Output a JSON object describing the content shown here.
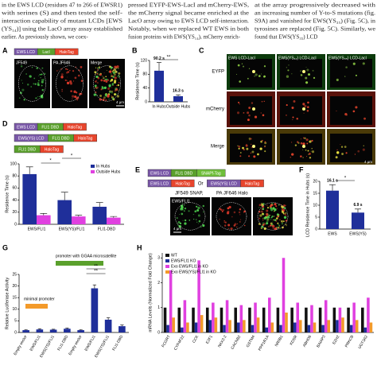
{
  "text_columns": [
    [
      "in the EWS LCD (residues 47 to 266 of EWSR1)",
      "with serines (S) and then tested the self-",
      "interaction capability of mutant LCDs [EWS",
      "(YS₁₄)] using the LacO array assay established",
      "earlier. As previously shown, we coex-"
    ],
    [
      "pressed EYFP-EWS-LacI and mCherry-EWS,",
      "the mCherry signal became enriched at the",
      "LacO array owing to EWS LCD self-interaction.",
      "Notably, when we replaced WT EWS in both",
      "fusion proteins with EWS(YS₁₄), mCherry enrich-"
    ],
    [
      "at the array progressively decreased with",
      "an increasing number of Y-to-S mutations (fig.",
      "S9A) and vanished for EWS(YS₃₅) (Fig. 5C), in",
      "tyrosines are replaced (Fig. 5C). Similarly, we",
      "found that EWS(YS₃₅) LCD"
    ]
  ],
  "panel_letters": [
    "A",
    "B",
    "C",
    "D",
    "E",
    "F",
    "G",
    "H"
  ],
  "panel_A": {
    "construct": [
      {
        "label": "EWS LCD",
        "color": "#7a58a8"
      },
      {
        "label": "LacI",
        "color": "#5aa02c"
      },
      {
        "label": "HaloTag",
        "color": "#e8452c"
      }
    ],
    "channels": [
      "JF549",
      "PA JF646",
      "Merge"
    ],
    "scale_bar": "4 μm"
  },
  "panel_C": {
    "columns": [
      "EWS LCD-LacI",
      "EWS(YS₁₄) LCD-LacI",
      "EWS(YS₃₅) LCD-LacI"
    ],
    "rows": [
      "EYFP",
      "mCherry",
      "Merge"
    ],
    "scale_bar": "4 μm"
  },
  "panel_D": {
    "constructs": [
      [
        {
          "label": "EWS LCD",
          "color": "#7a58a8"
        },
        {
          "label": "FLI1 DBD",
          "color": "#5aa02c"
        },
        {
          "label": "HaloTag",
          "color": "#e8452c"
        }
      ],
      [
        {
          "label": "EWS(YS) LCD",
          "color": "#7a58a8"
        },
        {
          "label": "FLI1 DBD",
          "color": "#5aa02c"
        },
        {
          "label": "HaloTag",
          "color": "#e8452c"
        }
      ],
      [
        {
          "label": "FLI1 DBD",
          "color": "#5aa02c"
        },
        {
          "label": "HaloTag",
          "color": "#e8452c"
        }
      ]
    ]
  },
  "panel_E": {
    "construct_1": [
      {
        "label": "EWS LCD",
        "color": "#7a58a8"
      },
      {
        "label": "FLI1 DBD",
        "color": "#5aa02c"
      },
      {
        "label": "SNAPf-Tag",
        "color": "#6fbf3a"
      }
    ],
    "construct_2a": [
      {
        "label": "EWS LCD",
        "color": "#7a58a8"
      },
      {
        "label": "HaloTag",
        "color": "#e8452c"
      }
    ],
    "or": "Or",
    "construct_2b": [
      {
        "label": "EWS(YS) LCD",
        "color": "#7a58a8"
      },
      {
        "label": "HaloTag",
        "color": "#e8452c"
      }
    ],
    "channels": [
      "JF549 SNAP,",
      "PA JF646 Halo"
    ],
    "cell_label": "EWS/FLI1",
    "scale_bar": "4 μm"
  },
  "panel_G": {
    "labels": [
      "minimal promoter",
      "promoter with GGAA microsatellite"
    ]
  },
  "chart_data": [
    {
      "type": "bar",
      "ylabel": "Residence Time (s)",
      "categories": [
        "In Hubs",
        "Outside Hubs"
      ],
      "values": [
        90.2,
        16.3
      ],
      "errors": [
        24,
        4
      ],
      "value_labels": [
        "90.2 s",
        "16.3 s"
      ],
      "color": "#1f2f9a",
      "ylim": [
        0,
        120
      ],
      "yticks": [
        0,
        40,
        80,
        120
      ],
      "annotations": [
        "**"
      ]
    },
    {
      "type": "bar",
      "ylabel": "Residence Time (s)",
      "categories": [
        "EWS/FLI1",
        "EWS(YS)/FLI1",
        "FLI1-DBD"
      ],
      "series": [
        {
          "name": "In Hubs",
          "color": "#1f2f9a",
          "values": [
            83,
            40,
            29
          ],
          "errors": [
            12,
            13,
            7
          ]
        },
        {
          "name": "Outside Hubs",
          "color": "#e040e0",
          "values": [
            15,
            13,
            11
          ],
          "errors": [
            3,
            2,
            2
          ]
        }
      ],
      "ylim": [
        0,
        100
      ],
      "yticks": [
        0,
        20,
        40,
        60,
        80,
        100
      ],
      "legend": "upper right",
      "annotations": [
        "*",
        "*"
      ]
    },
    {
      "type": "bar",
      "ylabel": "LCD Residence Time in Hubs (s)",
      "categories": [
        "EWS",
        "EWS(YS)"
      ],
      "values": [
        16.1,
        6.9
      ],
      "errors": [
        2.5,
        1.5
      ],
      "value_labels": [
        "16.1 s",
        "6.9 s"
      ],
      "color": "#1f2f9a",
      "ylim": [
        0,
        20
      ],
      "yticks": [
        0,
        5,
        10,
        15,
        20
      ],
      "annotations": [
        "*"
      ]
    },
    {
      "type": "bar",
      "ylabel": "Relative Luciferase Activity",
      "categories": [
        "Empty vector",
        "EWS/FLI1",
        "EWS(YS)/FLI1",
        "FLI1-DBD",
        "Empty vector",
        "EWS/FLI1",
        "EWS(YS)/FLI1",
        "FLI1-DBD"
      ],
      "values": [
        1.0,
        1.3,
        1.2,
        1.6,
        1.0,
        19,
        5.5,
        2.7
      ],
      "errors": [
        0.2,
        0.3,
        0.2,
        0.3,
        0.2,
        1.5,
        0.8,
        0.5
      ],
      "color": "#1f2f9a",
      "ylim": [
        0,
        25
      ],
      "yticks": [
        0,
        5,
        10,
        15,
        20,
        25
      ],
      "annotations": [
        "**",
        "**"
      ]
    },
    {
      "type": "bar",
      "ylabel": "mRNA Levels (Normalized Fold Change)",
      "categories": [
        "FCGRT",
        "CYP4F22",
        "CCK",
        "E2F1",
        "NKX2-2",
        "CACNB2",
        "GSTM4",
        "PPP1R1A",
        "NR0B1",
        "KDSR",
        "ABHD6",
        "BAIAP3",
        "EZH2",
        "PRKCB",
        "UGT3A2"
      ],
      "series": [
        {
          "name": "WT",
          "color": "#111111",
          "values": [
            1,
            1,
            1,
            1,
            1,
            1,
            1,
            1,
            1,
            1,
            1,
            1,
            1,
            1,
            1
          ]
        },
        {
          "name": "EWS/FLI1 KO",
          "color": "#1f2f9a",
          "values": [
            0.3,
            0.2,
            0.4,
            0.5,
            0.3,
            0.4,
            0.3,
            0.2,
            0.3,
            0.4,
            0.3,
            0.3,
            0.5,
            0.3,
            0.2
          ]
        },
        {
          "name": "Exo EWS/FLI1 in KO",
          "color": "#e040e0",
          "values": [
            2.5,
            1.3,
            2.9,
            1.2,
            1.3,
            1.1,
            1.2,
            1.4,
            3.0,
            1.2,
            1.1,
            1.3,
            1.0,
            1.2,
            1.4
          ]
        },
        {
          "name": "Exo EWS(YS)/FLI1 in KO",
          "color": "#f39a2a",
          "values": [
            0.6,
            0.4,
            0.7,
            0.6,
            0.5,
            0.5,
            0.6,
            0.4,
            0.8,
            0.5,
            0.4,
            0.5,
            0.6,
            0.5,
            0.4
          ]
        }
      ],
      "ylim": [
        0,
        3.2
      ],
      "yticks": [
        0,
        1,
        2,
        3
      ],
      "legend": "upper left"
    }
  ]
}
